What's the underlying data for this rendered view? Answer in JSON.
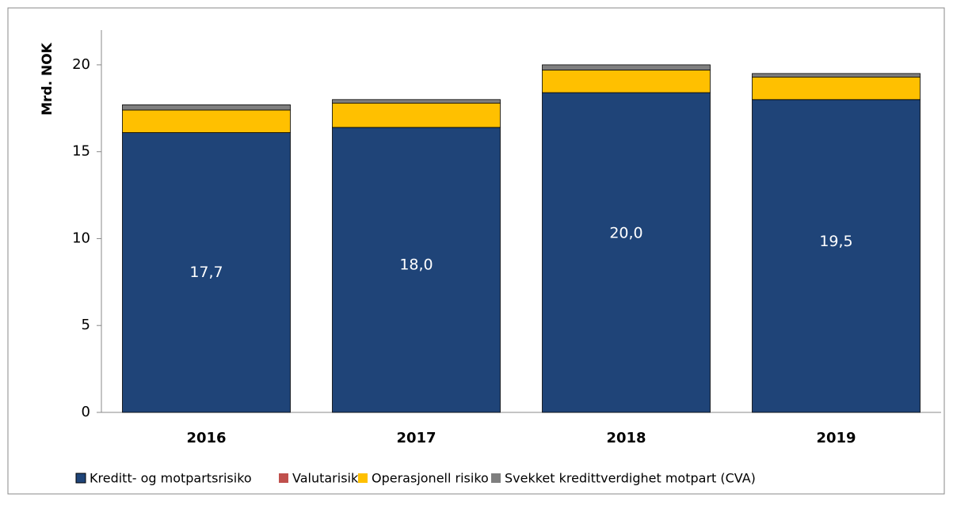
{
  "chart_data": {
    "type": "stacked_bar",
    "ylabel": "Mrd. NOK",
    "categories": [
      "2016",
      "2017",
      "2018",
      "2019"
    ],
    "series": [
      {
        "name": "Kreditt- og motpartsrisiko",
        "color": "#1f4478",
        "values": [
          16.1,
          16.4,
          18.4,
          18.0
        ]
      },
      {
        "name": "Valutarisiko",
        "color": "#c0504d",
        "values": [
          0,
          0,
          0,
          0
        ]
      },
      {
        "name": "Operasjonell risiko",
        "color": "#ffc000",
        "values": [
          1.3,
          1.4,
          1.3,
          1.3
        ]
      },
      {
        "name": "Svekket kredittverdighet motpart (CVA)",
        "color": "#7f7f7f",
        "values": [
          0.3,
          0.2,
          0.3,
          0.2
        ]
      }
    ],
    "totals": [
      17.7,
      18.0,
      20.0,
      19.5
    ],
    "total_labels": [
      "17,7",
      "18,0",
      "20,0",
      "19,5"
    ],
    "ylim": [
      0,
      22
    ],
    "yticks": [
      0,
      5,
      10,
      15,
      20
    ],
    "grid": false
  }
}
